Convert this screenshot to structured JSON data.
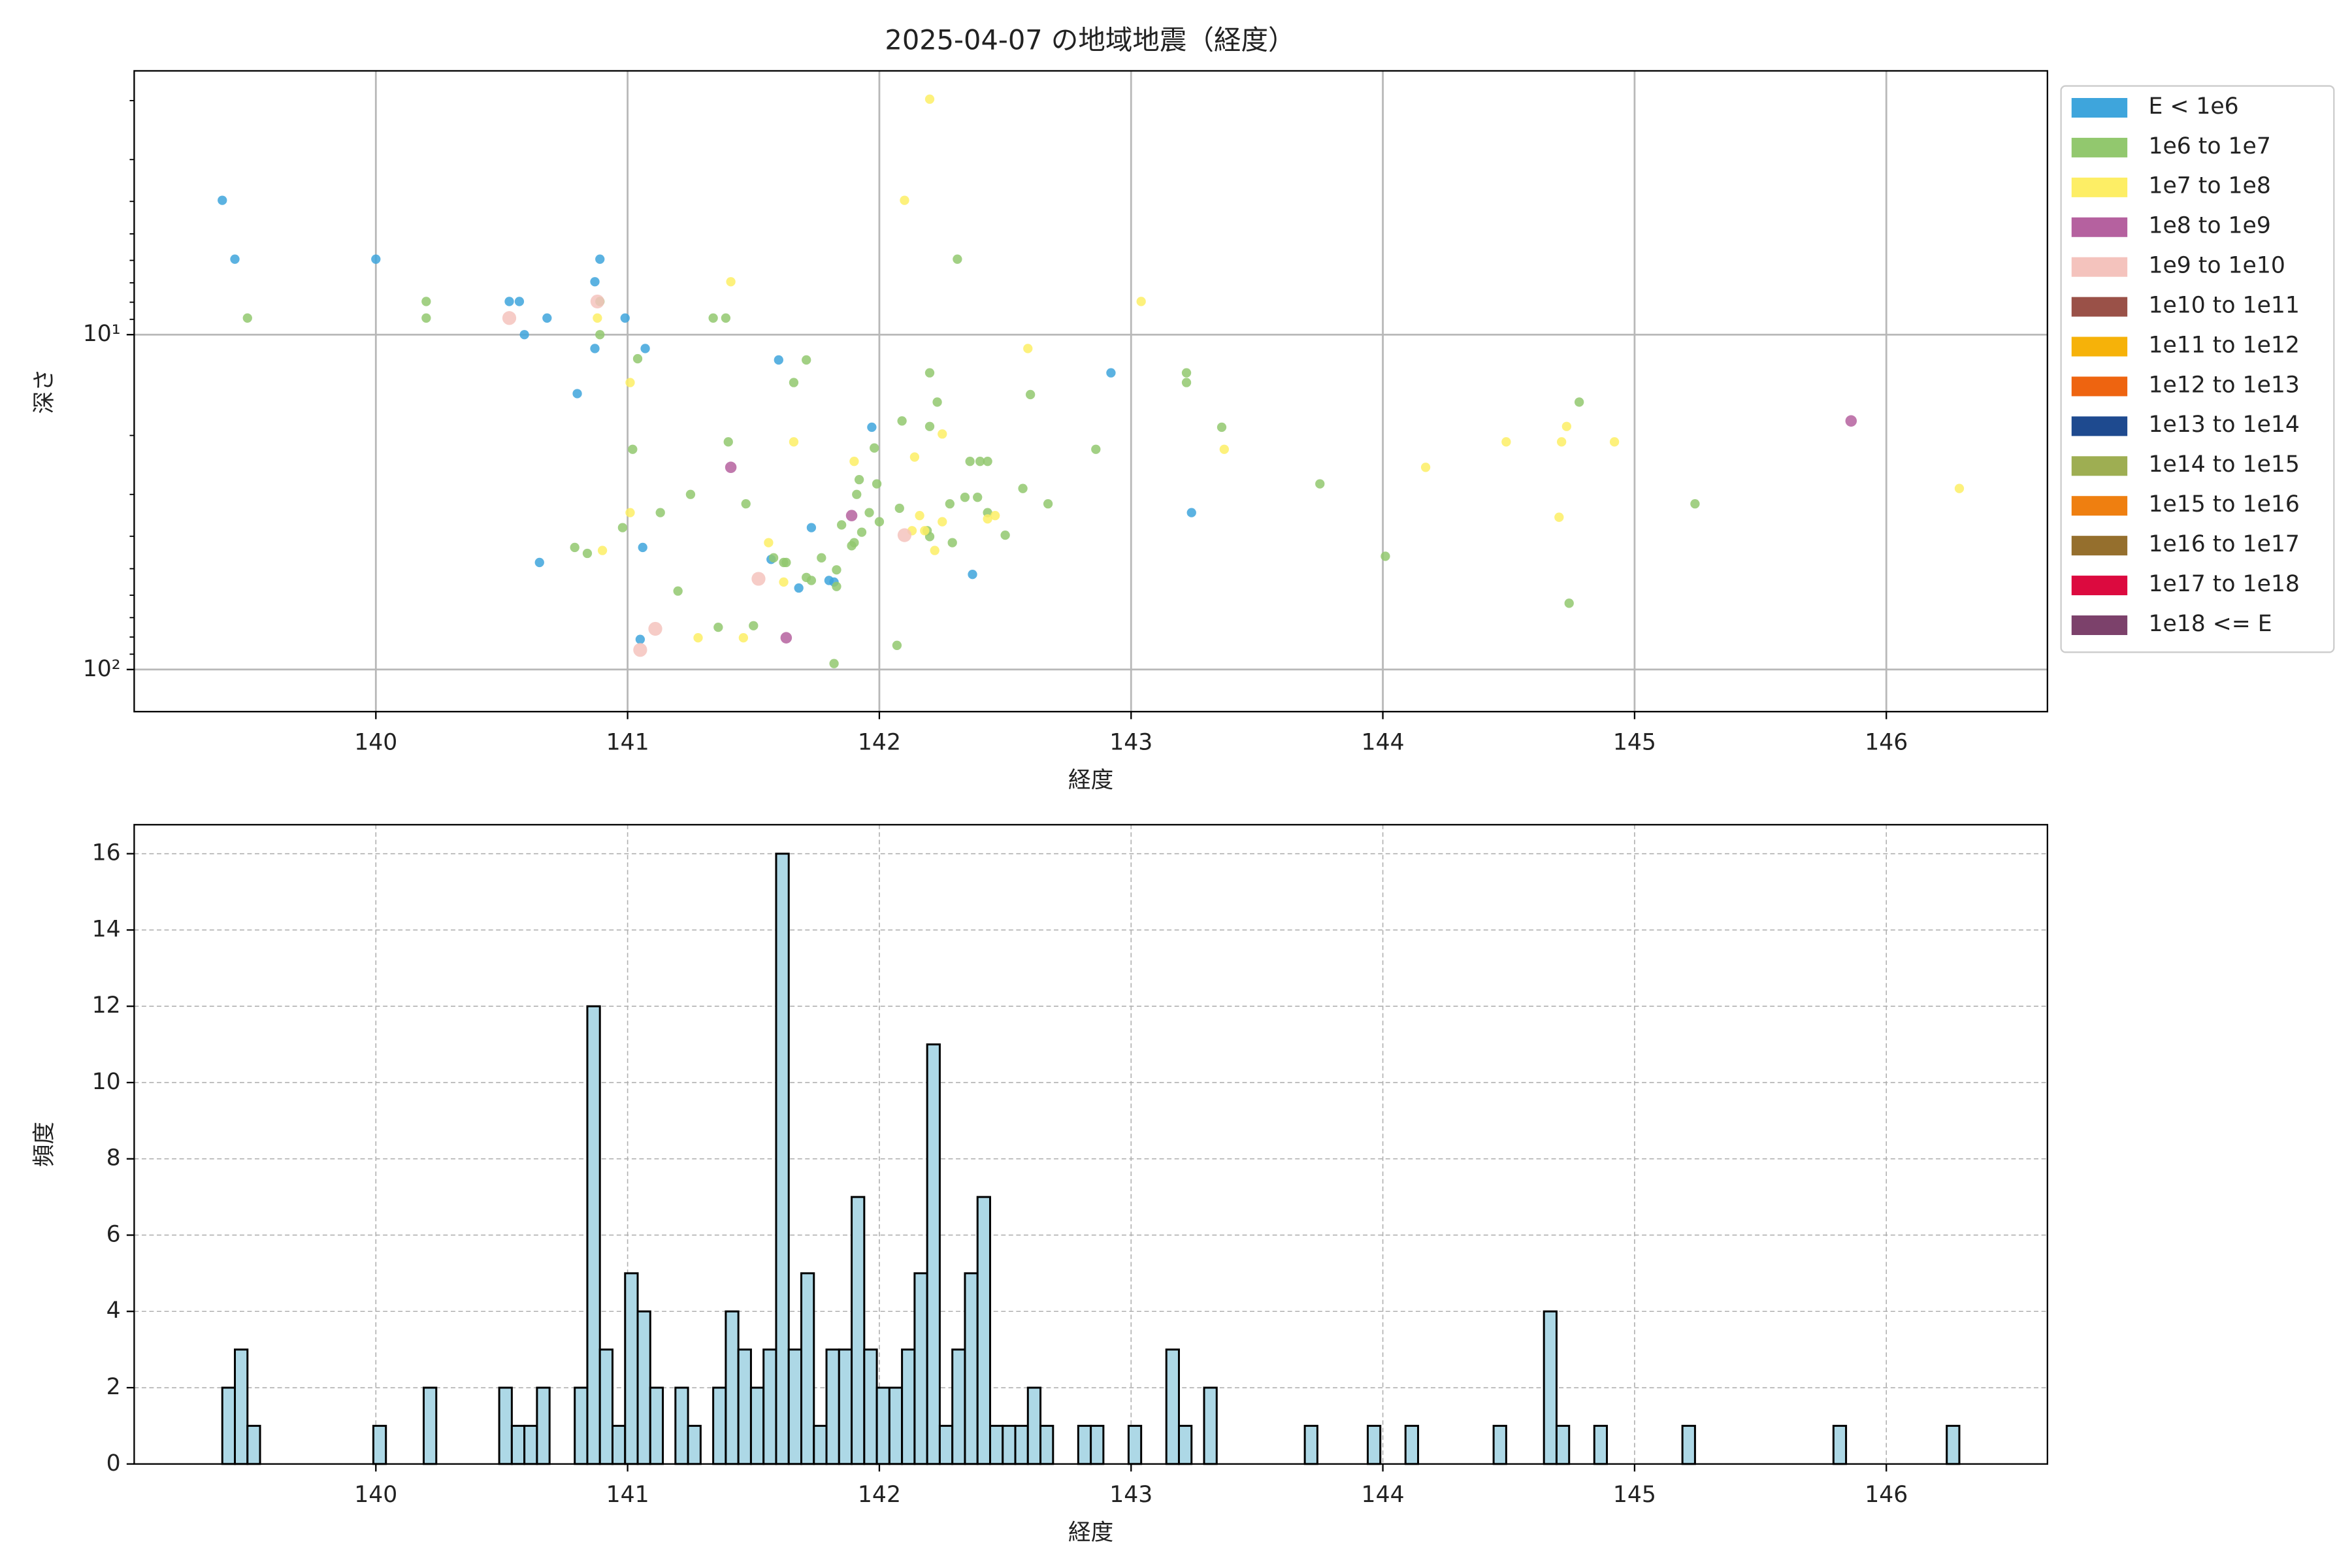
{
  "chart_data": [
    {
      "type": "scatter",
      "title": "2025-04-07 の地域地震（経度）",
      "xlabel": "経度",
      "ylabel": "深さ",
      "xlim": [
        139.04,
        146.64
      ],
      "xticks": [
        140,
        141,
        142,
        143,
        144,
        145,
        146
      ],
      "ylim": [
        133.6,
        1.63
      ],
      "log_y": true,
      "yticks": [
        {
          "value": 10,
          "label": "10¹"
        },
        {
          "value": 100,
          "label": "10²"
        }
      ],
      "yminor_ticks": [
        2,
        3,
        4,
        5,
        6,
        7,
        8,
        9,
        20,
        30,
        40,
        50,
        60,
        70,
        80,
        90
      ],
      "grid": true,
      "grid_style": "solid",
      "legend": "outside right",
      "series": [
        {
          "name": "E < 1e6",
          "color": "#3ea5dc",
          "x": [
            139.39,
            139.44,
            140.0,
            140.53,
            140.57,
            140.59,
            140.68,
            140.8,
            140.87,
            140.89,
            140.87,
            140.99,
            141.07,
            141.06,
            140.65,
            141.05,
            141.6,
            141.73,
            141.8,
            141.68,
            141.57,
            141.97,
            142.37,
            142.92,
            143.24,
            141.82
          ],
          "y": [
            3.97,
            5.95,
            5.95,
            7.96,
            7.96,
            10.0,
            8.92,
            15.0,
            6.95,
            5.95,
            11.0,
            8.92,
            11.0,
            43.2,
            47.9,
            81.3,
            11.9,
            37.7,
            54.2,
            57.1,
            46.9,
            18.9,
            52.0,
            13.0,
            34.0,
            54.8
          ]
        },
        {
          "name": "1e6 to 1e7",
          "color": "#92c86e",
          "x": [
            139.49,
            140.2,
            140.2,
            140.89,
            140.89,
            141.04,
            141.02,
            140.98,
            140.79,
            140.84,
            141.13,
            141.25,
            141.2,
            141.36,
            141.4,
            141.34,
            141.39,
            141.47,
            141.5,
            141.58,
            141.62,
            141.63,
            141.71,
            141.73,
            141.71,
            141.66,
            141.77,
            141.83,
            141.83,
            141.82,
            141.85,
            141.91,
            141.92,
            141.96,
            141.93,
            141.98,
            141.99,
            142.0,
            141.9,
            141.89,
            142.09,
            142.08,
            142.2,
            142.2,
            142.23,
            142.19,
            142.2,
            142.31,
            142.29,
            142.28,
            142.34,
            142.39,
            142.36,
            142.4,
            142.43,
            142.43,
            142.5,
            142.57,
            142.67,
            142.6,
            142.86,
            143.22,
            143.22,
            143.36,
            143.75,
            144.01,
            144.78,
            145.24,
            144.74,
            142.07
          ],
          "y": [
            8.92,
            7.96,
            8.92,
            7.96,
            10.0,
            11.8,
            22.0,
            37.7,
            43.2,
            45.0,
            34.0,
            30.0,
            58.3,
            74.8,
            20.9,
            8.92,
            8.92,
            32.0,
            74.0,
            46.4,
            47.9,
            47.9,
            53.1,
            54.2,
            11.9,
            13.9,
            46.4,
            50.4,
            56.5,
            96.0,
            37.0,
            30.0,
            27.1,
            34.0,
            38.9,
            21.8,
            27.9,
            36.2,
            41.8,
            42.7,
            18.1,
            33.0,
            13.0,
            18.8,
            15.9,
            38.5,
            40.1,
            5.95,
            41.8,
            32.0,
            30.6,
            30.6,
            23.9,
            23.9,
            23.9,
            34.0,
            39.7,
            28.8,
            32.0,
            15.1,
            22.0,
            13.0,
            13.9,
            18.9,
            27.9,
            45.9,
            15.9,
            32.0,
            63.4,
            84.7
          ]
        },
        {
          "name": "1e7 to 1e8",
          "color": "#fdee65",
          "x": [
            142.2,
            142.1,
            141.41,
            140.88,
            141.01,
            140.9,
            141.01,
            141.66,
            141.9,
            142.14,
            142.16,
            142.18,
            142.13,
            142.22,
            142.25,
            142.59,
            143.04,
            141.56,
            141.62,
            141.46,
            141.28,
            142.25,
            142.43,
            142.46,
            144.49,
            144.17,
            144.71,
            144.73,
            144.92,
            144.7,
            146.29,
            143.37
          ],
          "y": [
            1.98,
            3.97,
            6.95,
            8.92,
            13.9,
            44.1,
            34.0,
            20.9,
            23.9,
            23.2,
            34.7,
            38.5,
            38.5,
            44.1,
            19.8,
            11.0,
            7.96,
            41.8,
            54.8,
            80.4,
            80.4,
            36.2,
            35.5,
            34.7,
            20.9,
            24.9,
            20.9,
            18.8,
            20.9,
            35.1,
            28.8,
            22.0
          ]
        },
        {
          "name": "1e8 to 1e9",
          "color": "#b5619f",
          "x": [
            141.41,
            141.89,
            141.63,
            145.86
          ],
          "y": [
            24.9,
            34.7,
            80.4,
            18.1
          ]
        },
        {
          "name": "1e9 to 1e10",
          "color": "#f4c3bd",
          "x": [
            140.53,
            140.88,
            141.11,
            141.05,
            141.52,
            142.1
          ],
          "y": [
            8.92,
            7.96,
            75.6,
            87.4,
            53.6,
            39.7
          ]
        },
        {
          "name": "1e10 to 1e11",
          "color": "#9a5148",
          "x": [],
          "y": []
        },
        {
          "name": "1e11 to 1e12",
          "color": "#f6b209",
          "x": [],
          "y": []
        },
        {
          "name": "1e12 to 1e13",
          "color": "#ee6410",
          "x": [],
          "y": []
        },
        {
          "name": "1e13 to 1e14",
          "color": "#1e4a8f",
          "x": [],
          "y": []
        },
        {
          "name": "1e14 to 1e15",
          "color": "#9eae52",
          "x": [],
          "y": []
        },
        {
          "name": "1e15 to 1e16",
          "color": "#ef7f10",
          "x": [],
          "y": []
        },
        {
          "name": "1e16 to 1e17",
          "color": "#956f2d",
          "x": [],
          "y": []
        },
        {
          "name": "1e17 to 1e18",
          "color": "#dc0a3f",
          "x": [],
          "y": []
        },
        {
          "name": "1e18 <= E",
          "color": "#7c416b",
          "x": [],
          "y": []
        }
      ]
    },
    {
      "type": "histogram",
      "xlabel": "経度",
      "ylabel": "頻度",
      "xlim": [
        139.04,
        146.64
      ],
      "xticks": [
        140,
        141,
        142,
        143,
        144,
        145,
        146
      ],
      "ylim": [
        0,
        16.76
      ],
      "yticks": [
        0,
        2,
        4,
        6,
        8,
        10,
        12,
        14,
        16
      ],
      "grid": true,
      "grid_style": "dashed",
      "color": "#add8e6",
      "edgecolor": "#000000",
      "bins": [
        139.39,
        139.44,
        139.49,
        139.54,
        139.59,
        139.64,
        139.69,
        139.74,
        139.79,
        139.84,
        139.89,
        139.94,
        139.99,
        140.04,
        140.09,
        140.14,
        140.19,
        140.24,
        140.29,
        140.34,
        140.39,
        140.44,
        140.49,
        140.54,
        140.59,
        140.64,
        140.69,
        140.74,
        140.79,
        140.84,
        140.89,
        140.94,
        140.99,
        141.04,
        141.09,
        141.14,
        141.19,
        141.24,
        141.29,
        141.34,
        141.39,
        141.44,
        141.49,
        141.54,
        141.59,
        141.64,
        141.69,
        141.74,
        141.79,
        141.84,
        141.89,
        141.94,
        141.99,
        142.04,
        142.09,
        142.14,
        142.19,
        142.24,
        142.29,
        142.34,
        142.39,
        142.44,
        142.49,
        142.54,
        142.59,
        142.64,
        142.69,
        142.74,
        142.79,
        142.84,
        142.89,
        142.94,
        142.99,
        143.04,
        143.09,
        143.14,
        143.19,
        143.24,
        143.29,
        143.34,
        143.39,
        143.44,
        143.49,
        143.54,
        143.59,
        143.64,
        143.69,
        143.74,
        143.79,
        143.84,
        143.89,
        143.94,
        143.99,
        144.04,
        144.09,
        144.14,
        144.19,
        144.24,
        144.29,
        144.34,
        144.39,
        144.44,
        144.49,
        144.54,
        144.59,
        144.64,
        144.69,
        144.74,
        144.79,
        144.84,
        144.89,
        144.94,
        144.99,
        145.04,
        145.09,
        145.14,
        145.19,
        145.24,
        145.29,
        145.34,
        145.39,
        145.44,
        145.49,
        145.54,
        145.59,
        145.64,
        145.69,
        145.74,
        145.79,
        145.84,
        145.89,
        145.94,
        145.99,
        146.04,
        146.09,
        146.14,
        146.19,
        146.24,
        146.29
      ],
      "counts": [
        2,
        3,
        1,
        0,
        0,
        0,
        0,
        0,
        0,
        0,
        0,
        0,
        1,
        0,
        0,
        0,
        2,
        0,
        0,
        0,
        0,
        0,
        2,
        1,
        1,
        2,
        0,
        0,
        2,
        12,
        3,
        1,
        5,
        4,
        2,
        0,
        2,
        1,
        0,
        2,
        4,
        3,
        2,
        3,
        16,
        3,
        5,
        1,
        3,
        3,
        7,
        3,
        2,
        2,
        3,
        5,
        11,
        1,
        3,
        5,
        7,
        1,
        1,
        1,
        2,
        1,
        0,
        0,
        1,
        1,
        0,
        0,
        1,
        0,
        0,
        3,
        1,
        0,
        2,
        0,
        0,
        0,
        0,
        0,
        0,
        0,
        1,
        0,
        0,
        0,
        0,
        1,
        0,
        0,
        1,
        0,
        0,
        0,
        0,
        0,
        0,
        1,
        0,
        0,
        0,
        4,
        1,
        0,
        0,
        1,
        0,
        0,
        0,
        0,
        0,
        0,
        1,
        0,
        0,
        0,
        0,
        0,
        0,
        0,
        0,
        0,
        0,
        0,
        1,
        0,
        0,
        0,
        0,
        0,
        0,
        0,
        0,
        1
      ]
    }
  ]
}
